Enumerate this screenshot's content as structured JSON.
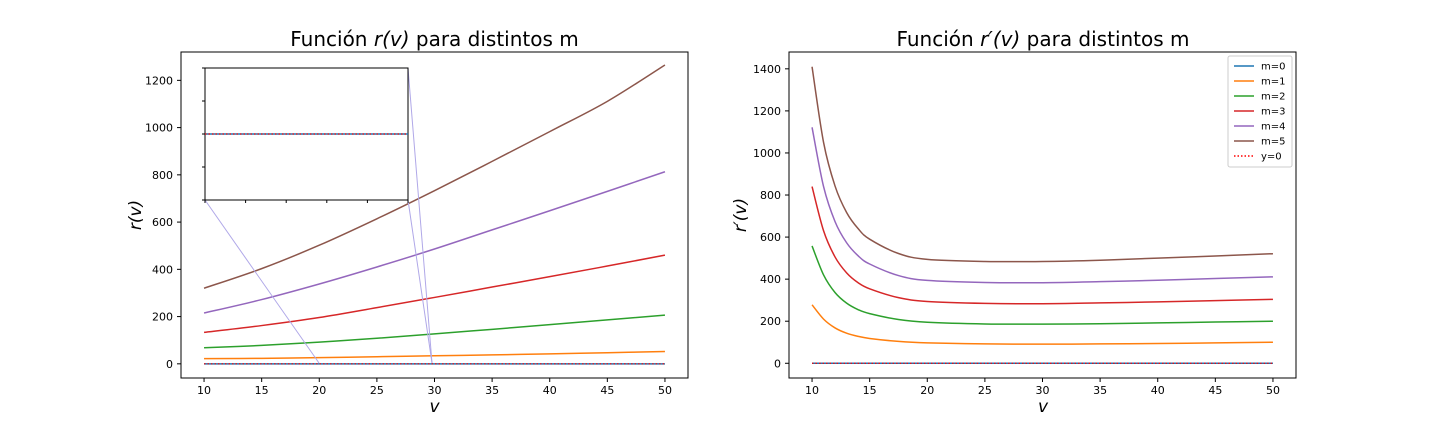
{
  "colors": {
    "m0": "#1f77b4",
    "m1": "#ff7f0e",
    "m2": "#2ca02c",
    "m3": "#d62728",
    "m4": "#9467bd",
    "m5": "#8c564b",
    "zero_line": "#ff0000",
    "inset_connector": "#b0a8e8"
  },
  "chart_data": [
    {
      "type": "line",
      "title_prefix": "Función ",
      "title_math": "r(v)",
      "title_suffix": " para distintos m",
      "xlabel": "v",
      "ylabel": "r(v)",
      "xlim": [
        8,
        52
      ],
      "ylim": [
        -60,
        1320
      ],
      "xticks": [
        10,
        15,
        20,
        25,
        30,
        35,
        40,
        45,
        50
      ],
      "yticks": [
        0,
        200,
        400,
        600,
        800,
        1000,
        1200
      ],
      "grid": false,
      "x": [
        10,
        15,
        20,
        25,
        30,
        35,
        40,
        45,
        50
      ],
      "series": [
        {
          "name": "m=0",
          "color_key": "m0",
          "values": [
            0,
            0,
            0,
            0,
            0,
            0,
            0,
            0,
            0
          ]
        },
        {
          "name": "m=1",
          "color_key": "m1",
          "values": [
            22,
            23,
            26,
            30,
            34,
            38,
            42,
            47,
            52
          ]
        },
        {
          "name": "m=2",
          "color_key": "m2",
          "values": [
            68,
            78,
            92,
            108,
            127,
            146,
            166,
            186,
            206
          ]
        },
        {
          "name": "m=3",
          "color_key": "m3",
          "values": [
            133,
            162,
            196,
            238,
            281,
            325,
            369,
            414,
            460
          ]
        },
        {
          "name": "m=4",
          "color_key": "m4",
          "values": [
            215,
            272,
            338,
            410,
            486,
            567,
            648,
            730,
            813
          ]
        },
        {
          "name": "m=5",
          "color_key": "m5",
          "values": [
            320,
            403,
            502,
            614,
            733,
            857,
            983,
            1111,
            1265
          ]
        },
        {
          "name": "y=0",
          "color_key": "zero_line",
          "style": "dotted",
          "values": [
            0,
            0,
            0,
            0,
            0,
            0,
            0,
            0,
            0
          ]
        }
      ],
      "inset": {
        "xlim": [
          20,
          30
        ],
        "series": [
          "m=0",
          "y=0"
        ],
        "show_tick_labels": false
      }
    },
    {
      "type": "line",
      "title_prefix": "Función ",
      "title_math": "r′(v)",
      "title_suffix": " para distintos m",
      "xlabel": "v",
      "ylabel": "r′(v)",
      "xlim": [
        8,
        52
      ],
      "ylim": [
        -70,
        1480
      ],
      "xticks": [
        10,
        15,
        20,
        25,
        30,
        35,
        40,
        45,
        50
      ],
      "yticks": [
        0,
        200,
        400,
        600,
        800,
        1000,
        1200,
        1400
      ],
      "grid": false,
      "legend_position": "top-right",
      "x": [
        10,
        11,
        12,
        13,
        14,
        15,
        17.5,
        20,
        25,
        30,
        35,
        40,
        45,
        50
      ],
      "series": [
        {
          "name": "m=0",
          "color_key": "m0",
          "values": [
            0,
            0,
            0,
            0,
            0,
            0,
            0,
            0,
            0,
            0,
            0,
            0,
            0,
            0
          ]
        },
        {
          "name": "m=1",
          "color_key": "m1",
          "values": [
            278,
            210,
            168,
            143,
            128,
            118,
            104,
            97,
            92,
            91,
            92,
            94,
            97,
            100
          ]
        },
        {
          "name": "m=2",
          "color_key": "m2",
          "values": [
            558,
            420,
            336,
            286,
            255,
            236,
            208,
            195,
            187,
            186,
            188,
            192,
            196,
            200
          ]
        },
        {
          "name": "m=3",
          "color_key": "m3",
          "values": [
            840,
            630,
            505,
            430,
            383,
            354,
            312,
            294,
            285,
            283,
            287,
            292,
            298,
            304
          ]
        },
        {
          "name": "m=4",
          "color_key": "m4",
          "values": [
            1122,
            840,
            673,
            573,
            511,
            472,
            417,
            394,
            384,
            383,
            388,
            395,
            403,
            411
          ]
        },
        {
          "name": "m=5",
          "color_key": "m5",
          "values": [
            1410,
            1050,
            842,
            717,
            640,
            590,
            522,
            494,
            484,
            484,
            490,
            500,
            510,
            521
          ]
        },
        {
          "name": "y=0",
          "color_key": "zero_line",
          "style": "dotted",
          "values": [
            0,
            0,
            0,
            0,
            0,
            0,
            0,
            0,
            0,
            0,
            0,
            0,
            0,
            0
          ]
        }
      ]
    }
  ]
}
